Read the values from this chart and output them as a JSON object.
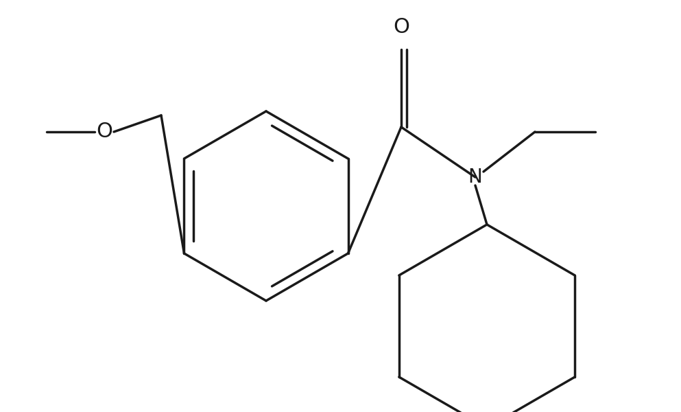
{
  "background_color": "#ffffff",
  "line_color": "#1a1a1a",
  "line_width": 2.5,
  "figsize": [
    9.93,
    6.0
  ],
  "dpi": 100,
  "O_carbonyl_label": "O",
  "N_label": "N",
  "O_ether_label": "O",
  "O_fontsize": 22,
  "N_fontsize": 20
}
